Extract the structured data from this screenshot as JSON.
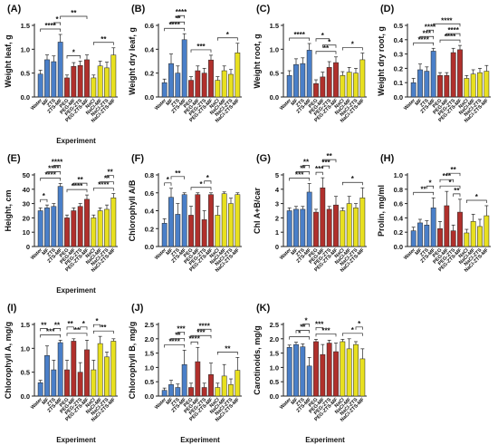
{
  "colors": {
    "Water": "#4a7fc8",
    "MF": "#4a7fc8",
    "ZTS": "#4a7fc8",
    "ZTS-MF": "#4a7fc8",
    "PEG": "#b0302c",
    "PEG-MF": "#b0302c",
    "PEG-ZTS": "#b0302c",
    "PEG-ZTS-MF": "#b0302c",
    "NaCl": "#e8e020",
    "NaCl-MF": "#e8e020",
    "NaCl-ZTS": "#e8e020",
    "NaCl-ZTS-MF": "#e8e020"
  },
  "chart_data": [
    {
      "type": "bar",
      "panel": "(A)",
      "ylabel": "Weight leaf, g",
      "xlabel": "Experiment",
      "ylim": [
        0,
        1.5
      ],
      "yticks": [
        "0.0",
        "0.5",
        "1.0",
        "1.5"
      ],
      "categories": [
        "Water",
        "MF",
        "ZTS",
        "ZTS-MF",
        "PEG",
        "PEG-MF",
        "PEG-ZTS",
        "PEG-ZTS-MF",
        "NaCl",
        "NaCl-MF",
        "NaCl-ZTS",
        "NaCl-ZTS-MF"
      ],
      "values": [
        0.48,
        0.78,
        0.74,
        1.15,
        0.4,
        0.64,
        0.66,
        0.78,
        0.4,
        0.65,
        0.61,
        0.88
      ],
      "errors": [
        0.08,
        0.1,
        0.12,
        0.16,
        0.06,
        0.08,
        0.09,
        0.1,
        0.06,
        0.1,
        0.12,
        0.15
      ],
      "sig": [
        {
          "a": 0,
          "b": 3,
          "s": "****"
        },
        {
          "a": 2,
          "b": 3,
          "s": "*"
        },
        {
          "a": 3,
          "b": 7,
          "s": "**"
        },
        {
          "a": 4,
          "b": 6,
          "s": "*"
        },
        {
          "a": 8,
          "b": 11,
          "s": "**"
        }
      ]
    },
    {
      "type": "bar",
      "panel": "(B)",
      "ylabel": "Weight dry leaf, g",
      "xlabel": "",
      "ylim": [
        0,
        0.6
      ],
      "yticks": [
        "0.0",
        "0.2",
        "0.4",
        "0.6"
      ],
      "categories": [
        "Water",
        "MF",
        "ZTS",
        "ZTS-MF",
        "PEG",
        "PEG-MF",
        "PEG-ZTS",
        "PEG-ZTS-MF",
        "NaCl",
        "NaCl-MF",
        "NaCl-ZTS",
        "NaCl-ZTS-MF"
      ],
      "values": [
        0.12,
        0.28,
        0.2,
        0.48,
        0.14,
        0.22,
        0.2,
        0.31,
        0.14,
        0.22,
        0.19,
        0.37
      ],
      "errors": [
        0.03,
        0.08,
        0.06,
        0.05,
        0.03,
        0.04,
        0.04,
        0.04,
        0.03,
        0.04,
        0.04,
        0.08
      ],
      "sig": [
        {
          "a": 0,
          "b": 3,
          "s": "****"
        },
        {
          "a": 1,
          "b": 3,
          "s": "**"
        },
        {
          "a": 2,
          "b": 3,
          "s": "****"
        },
        {
          "a": 4,
          "b": 7,
          "s": "***"
        },
        {
          "a": 8,
          "b": 11,
          "s": "*"
        }
      ]
    },
    {
      "type": "bar",
      "panel": "(C)",
      "ylabel": "Weight root, g",
      "xlabel": "",
      "ylim": [
        0,
        1.5
      ],
      "yticks": [
        "0.0",
        "0.5",
        "1.0",
        "1.5"
      ],
      "categories": [
        "Water",
        "MF",
        "ZTS",
        "ZTS-MF",
        "PEG",
        "PEG-MF",
        "PEG-ZTS",
        "PEG-ZTS-MF",
        "NaCl",
        "NaCl-MF",
        "NaCl-ZTS",
        "NaCl-ZTS-MF"
      ],
      "values": [
        0.45,
        0.68,
        0.7,
        0.98,
        0.28,
        0.42,
        0.62,
        0.72,
        0.45,
        0.52,
        0.5,
        0.78
      ],
      "errors": [
        0.1,
        0.12,
        0.12,
        0.14,
        0.08,
        0.1,
        0.12,
        0.12,
        0.08,
        0.1,
        0.1,
        0.14
      ],
      "sig": [
        {
          "a": 0,
          "b": 3,
          "s": "****"
        },
        {
          "a": 4,
          "b": 7,
          "s": "**"
        },
        {
          "a": 5,
          "b": 7,
          "s": "*"
        },
        {
          "a": 4,
          "b": 6,
          "s": "*"
        },
        {
          "a": 8,
          "b": 11,
          "s": "*"
        }
      ]
    },
    {
      "type": "bar",
      "panel": "(D)",
      "ylabel": "Weight dry root, g",
      "xlabel": "",
      "ylim": [
        0,
        0.5
      ],
      "yticks": [
        "0.0",
        "0.1",
        "0.2",
        "0.3",
        "0.4",
        "0.5"
      ],
      "categories": [
        "Water",
        "MF",
        "ZTS",
        "ZTS-MF",
        "PEG",
        "PEG-MF",
        "PEG-ZTS",
        "PEG-ZTS-MF",
        "NaCl",
        "NaCl-MF",
        "NaCl-ZTS",
        "NaCl-ZTS-MF"
      ],
      "values": [
        0.1,
        0.19,
        0.18,
        0.32,
        0.15,
        0.15,
        0.31,
        0.33,
        0.13,
        0.16,
        0.17,
        0.18
      ],
      "errors": [
        0.03,
        0.04,
        0.03,
        0.02,
        0.02,
        0.02,
        0.03,
        0.03,
        0.02,
        0.03,
        0.03,
        0.04
      ],
      "sig": [
        {
          "a": 0,
          "b": 3,
          "s": "****"
        },
        {
          "a": 1,
          "b": 3,
          "s": "***"
        },
        {
          "a": 2,
          "b": 3,
          "s": "****"
        },
        {
          "a": 3,
          "b": 7,
          "s": "****"
        },
        {
          "a": 4,
          "b": 7,
          "s": "****"
        },
        {
          "a": 5,
          "b": 7,
          "s": "****"
        }
      ]
    },
    {
      "type": "bar",
      "panel": "(E)",
      "ylabel": "Height, cm",
      "xlabel": "Experiment",
      "ylim": [
        0,
        50
      ],
      "yticks": [
        "0",
        "10",
        "20",
        "30",
        "40",
        "50"
      ],
      "categories": [
        "Water",
        "MF",
        "ZTS",
        "ZTS-MF",
        "PEG",
        "PEG-MF",
        "PEG-ZTS",
        "PEG-ZTS-MF",
        "NaCl",
        "NaCl-MF",
        "NaCl-ZTS",
        "NaCl-ZTS-MF"
      ],
      "values": [
        25,
        27,
        28,
        42,
        20,
        25,
        28,
        33,
        20,
        25,
        26,
        34
      ],
      "errors": [
        2,
        2,
        2,
        2,
        2,
        2,
        2,
        3,
        2,
        2,
        3,
        3
      ],
      "sig": [
        {
          "a": 0,
          "b": 3,
          "s": "****"
        },
        {
          "a": 1,
          "b": 3,
          "s": "****"
        },
        {
          "a": 2,
          "b": 3,
          "s": "****"
        },
        {
          "a": 4,
          "b": 7,
          "s": "****"
        },
        {
          "a": 5,
          "b": 7,
          "s": "**"
        },
        {
          "a": 8,
          "b": 11,
          "s": "****"
        },
        {
          "a": 9,
          "b": 11,
          "s": "**"
        },
        {
          "a": 0,
          "b": 1,
          "s": "*"
        },
        {
          "a": 10,
          "b": 11,
          "s": "**"
        }
      ]
    },
    {
      "type": "bar",
      "panel": "(F)",
      "ylabel": "Chlorophyll A/B",
      "xlabel": "",
      "ylim": [
        0,
        0.8
      ],
      "yticks": [
        "0.0",
        "0.2",
        "0.4",
        "0.6",
        "0.8"
      ],
      "categories": [
        "Water",
        "MF",
        "ZTS",
        "ZTS-MF",
        "PEG",
        "PEG-MF",
        "PEG-ZTS",
        "PEG-ZTS-MF",
        "NaCl",
        "NaCl-MF",
        "NaCl-ZTS",
        "NaCl-ZTS-MF"
      ],
      "values": [
        0.26,
        0.55,
        0.36,
        0.58,
        0.35,
        0.58,
        0.3,
        0.58,
        0.35,
        0.59,
        0.48,
        0.58
      ],
      "errors": [
        0.05,
        0.1,
        0.12,
        0.02,
        0.1,
        0.02,
        0.1,
        0.02,
        0.1,
        0.02,
        0.06,
        0.02
      ],
      "sig": [
        {
          "a": 0,
          "b": 1,
          "s": "*"
        },
        {
          "a": 1,
          "b": 3,
          "s": "**"
        },
        {
          "a": 4,
          "b": 7,
          "s": "*"
        },
        {
          "a": 6,
          "b": 7,
          "s": "*"
        }
      ]
    },
    {
      "type": "bar",
      "panel": "(G)",
      "ylabel": "Chl A+B/car",
      "xlabel": "",
      "ylim": [
        0,
        5
      ],
      "yticks": [
        "0",
        "1",
        "2",
        "3",
        "4",
        "5"
      ],
      "categories": [
        "Water",
        "MF",
        "ZTS",
        "ZTS-MF",
        "PEG",
        "PEG-MF",
        "PEG-ZTS",
        "PEG-ZTS-MF",
        "NaCl",
        "NaCl-MF",
        "NaCl-ZTS",
        "NaCl-ZTS-MF"
      ],
      "values": [
        2.5,
        2.6,
        2.6,
        3.8,
        2.4,
        4.1,
        2.6,
        2.9,
        2.5,
        3.0,
        2.7,
        3.4
      ],
      "errors": [
        0.2,
        0.2,
        0.2,
        0.6,
        0.2,
        0.7,
        0.2,
        0.6,
        0.2,
        0.5,
        0.3,
        0.7
      ],
      "sig": [
        {
          "a": 0,
          "b": 3,
          "s": "***"
        },
        {
          "a": 1,
          "b": 3,
          "s": "**"
        },
        {
          "a": 2,
          "b": 3,
          "s": "**"
        },
        {
          "a": 4,
          "b": 5,
          "s": "***"
        },
        {
          "a": 5,
          "b": 6,
          "s": "***"
        },
        {
          "a": 5,
          "b": 7,
          "s": "**"
        },
        {
          "a": 8,
          "b": 11,
          "s": "*"
        }
      ]
    },
    {
      "type": "bar",
      "panel": "(H)",
      "ylabel": "Prolin, mg/ml",
      "xlabel": "",
      "ylim": [
        0,
        1.0
      ],
      "yticks": [
        "0.0",
        "0.2",
        "0.4",
        "0.6",
        "0.8",
        "1.0"
      ],
      "categories": [
        "Water",
        "MF",
        "ZTS",
        "ZTS-MF",
        "PEG",
        "PEG-MF",
        "PEG-ZTS",
        "PEG-ZTS-MF",
        "NaCl",
        "NaCl-MF",
        "NaCl-ZTS",
        "NaCl-ZTS-MF"
      ],
      "values": [
        0.22,
        0.33,
        0.3,
        0.54,
        0.25,
        0.57,
        0.22,
        0.48,
        0.19,
        0.35,
        0.28,
        0.43
      ],
      "errors": [
        0.05,
        0.05,
        0.06,
        0.14,
        0.1,
        0.2,
        0.08,
        0.18,
        0.05,
        0.1,
        0.1,
        0.14
      ],
      "sig": [
        {
          "a": 0,
          "b": 3,
          "s": "**"
        },
        {
          "a": 2,
          "b": 3,
          "s": "*"
        },
        {
          "a": 4,
          "b": 7,
          "s": "*"
        },
        {
          "a": 4,
          "b": 6,
          "s": "***"
        },
        {
          "a": 5,
          "b": 7,
          "s": "**"
        },
        {
          "a": 6,
          "b": 7,
          "s": "**"
        },
        {
          "a": 8,
          "b": 11,
          "s": "*"
        }
      ]
    },
    {
      "type": "bar",
      "panel": "(I)",
      "ylabel": "Chlorophyll A, mg/g",
      "xlabel": "Experiment",
      "ylim": [
        0,
        1.5
      ],
      "yticks": [
        "0.0",
        "0.5",
        "1.0",
        "1.5"
      ],
      "categories": [
        "Water",
        "MF",
        "ZTS",
        "ZTS-MF",
        "PEG",
        "PEG-MF",
        "PEG-ZTS",
        "PEG-ZTS-MF",
        "NaCl",
        "NaCl-MF",
        "NaCl-ZTS",
        "NaCl-ZTS-MF"
      ],
      "values": [
        0.28,
        0.85,
        0.55,
        1.12,
        0.55,
        1.15,
        0.5,
        0.97,
        0.55,
        1.1,
        0.82,
        1.15
      ],
      "errors": [
        0.05,
        0.2,
        0.2,
        0.05,
        0.2,
        0.05,
        0.2,
        0.2,
        0.2,
        0.15,
        0.1,
        0.05
      ],
      "sig": [
        {
          "a": 0,
          "b": 3,
          "s": "***"
        },
        {
          "a": 0,
          "b": 1,
          "s": "**"
        },
        {
          "a": 2,
          "b": 3,
          "s": "**"
        },
        {
          "a": 4,
          "b": 7,
          "s": "**"
        },
        {
          "a": 4,
          "b": 5,
          "s": "**"
        },
        {
          "a": 6,
          "b": 7,
          "s": "*"
        },
        {
          "a": 8,
          "b": 11,
          "s": "**"
        },
        {
          "a": 8,
          "b": 9,
          "s": "*"
        }
      ]
    },
    {
      "type": "bar",
      "panel": "(J)",
      "ylabel": "Chlorophyll B, mg/g",
      "xlabel": "Experiment",
      "ylim": [
        0,
        2.5
      ],
      "yticks": [
        "0.0",
        "0.5",
        "1.0",
        "1.5",
        "2.0",
        "2.5"
      ],
      "categories": [
        "Water",
        "MF",
        "ZTS",
        "ZTS-MF",
        "PEG",
        "PEG-MF",
        "PEG-ZTS",
        "PEG-ZTS-MF",
        "NaCl",
        "NaCl-MF",
        "NaCl-ZTS",
        "NaCl-ZTS-MF"
      ],
      "values": [
        0.2,
        0.4,
        0.3,
        1.1,
        0.3,
        1.2,
        0.3,
        0.75,
        0.3,
        0.7,
        0.4,
        0.9
      ],
      "errors": [
        0.08,
        0.15,
        0.12,
        0.5,
        0.15,
        0.5,
        0.15,
        0.4,
        0.15,
        0.4,
        0.2,
        0.45
      ],
      "sig": [
        {
          "a": 0,
          "b": 3,
          "s": "****"
        },
        {
          "a": 1,
          "b": 3,
          "s": "**"
        },
        {
          "a": 2,
          "b": 3,
          "s": "***"
        },
        {
          "a": 4,
          "b": 5,
          "s": "****"
        },
        {
          "a": 4,
          "b": 7,
          "s": "***"
        },
        {
          "a": 5,
          "b": 7,
          "s": "****"
        },
        {
          "a": 8,
          "b": 11,
          "s": "**"
        }
      ]
    },
    {
      "type": "bar",
      "panel": "(K)",
      "ylabel": "Carotinoids, mg/g",
      "xlabel": "Experiment",
      "ylim": [
        0,
        2.5
      ],
      "yticks": [
        "0.0",
        "0.5",
        "1.0",
        "1.5",
        "2.0",
        "2.5"
      ],
      "categories": [
        "Water",
        "MF",
        "ZTS",
        "ZTS-MF",
        "PEG",
        "PEG-MF",
        "PEG-ZTS",
        "PEG-ZTS-MF",
        "NaCl",
        "NaCl-MF",
        "NaCl-ZTS",
        "NaCl-ZTS-MF"
      ],
      "values": [
        1.7,
        1.8,
        1.72,
        1.05,
        1.9,
        1.45,
        1.85,
        1.55,
        1.9,
        1.65,
        1.8,
        1.3
      ],
      "errors": [
        0.08,
        0.08,
        0.1,
        0.3,
        0.08,
        0.35,
        0.1,
        0.3,
        0.08,
        0.35,
        0.1,
        0.35
      ],
      "sig": [
        {
          "a": 0,
          "b": 3,
          "s": "*"
        },
        {
          "a": 1,
          "b": 3,
          "s": "**"
        },
        {
          "a": 2,
          "b": 3,
          "s": "*"
        },
        {
          "a": 4,
          "b": 7,
          "s": "***"
        },
        {
          "a": 4,
          "b": 5,
          "s": "***"
        },
        {
          "a": 8,
          "b": 11,
          "s": "*"
        },
        {
          "a": 10,
          "b": 11,
          "s": "*"
        }
      ]
    }
  ]
}
